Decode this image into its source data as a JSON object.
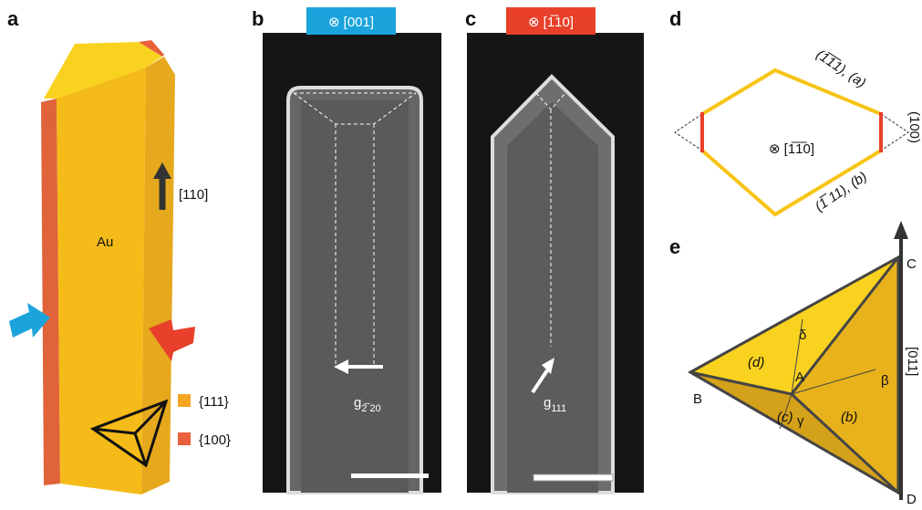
{
  "panel_a": {
    "label": "a",
    "material": "Au",
    "direction": "[110]",
    "legend": [
      "{111}",
      "{100}"
    ]
  },
  "panel_b": {
    "label": "b",
    "zone_axis": "⊗ [001]",
    "g_symbol": "g",
    "g_index": "2̅ 20"
  },
  "panel_c": {
    "label": "c",
    "zone_axis": "⊗ [1̅10]",
    "g_symbol": "g",
    "g_index": "111"
  },
  "panel_d": {
    "label": "d",
    "zone_axis": "⊗ [1̅1̅0]",
    "facet_a": "(1̅1̅1), (a)",
    "facet_b": "(1̅ 11), (b)",
    "facet_side": "(100)"
  },
  "panel_e": {
    "label": "e",
    "vertices": [
      "A",
      "B",
      "C",
      "D"
    ],
    "faces": [
      "(d)",
      "(c)",
      "(b)"
    ],
    "angles": [
      "β",
      "γ",
      "δ"
    ],
    "axis": "[011]"
  }
}
